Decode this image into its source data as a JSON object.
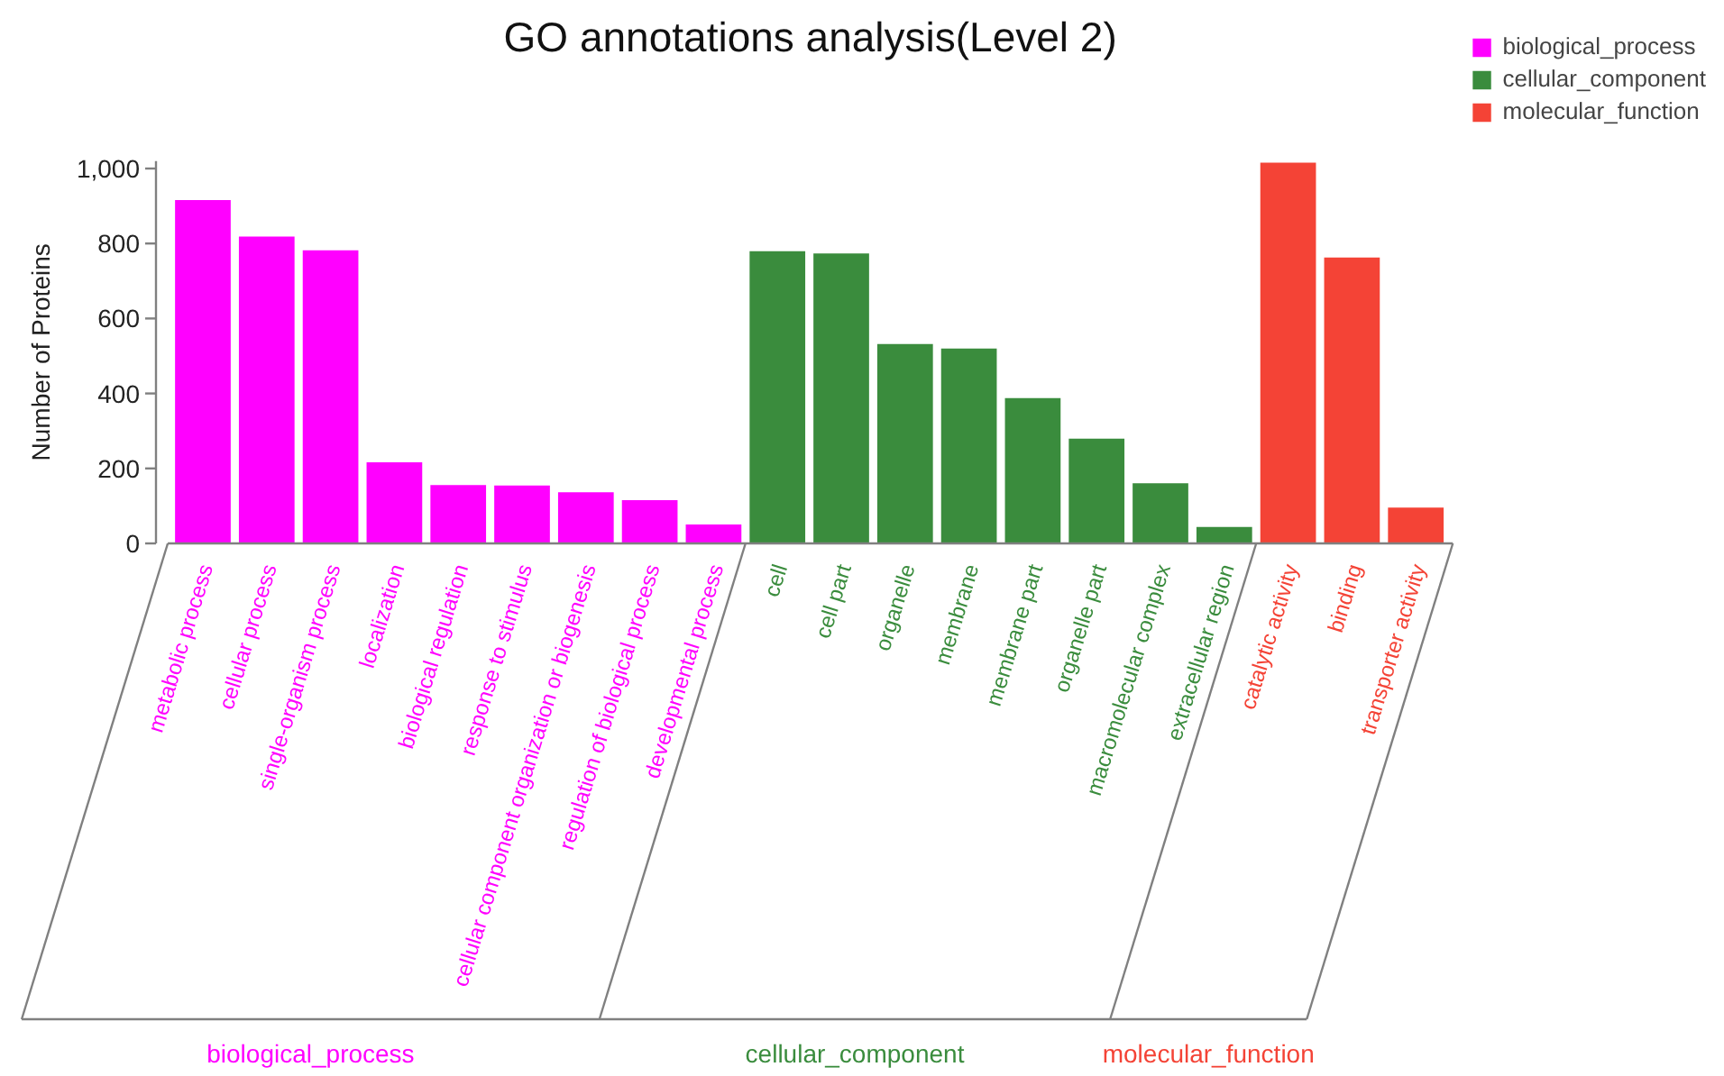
{
  "chart_data": {
    "type": "bar",
    "title": "GO annotations analysis(Level 2)",
    "ylabel": "Number of Proteins",
    "categories": [
      "metabolic process",
      "cellular process",
      "single-organism process",
      "localization",
      "biological regulation",
      "response to stimulus",
      "cellular component organization or biogenesis",
      "regulation of biological process",
      "developmental process",
      "cell",
      "cell part",
      "organelle",
      "membrane",
      "membrane part",
      "organelle part",
      "macromolecular complex",
      "extracellular region",
      "catalytic activity",
      "binding",
      "transporter activity"
    ],
    "series": [
      {
        "name": "biological_process",
        "color": "#ff00ff",
        "values": [
          918,
          821,
          784,
          219,
          158,
          157,
          139,
          118,
          53,
          null,
          null,
          null,
          null,
          null,
          null,
          null,
          null,
          null,
          null,
          null
        ]
      },
      {
        "name": "cellular_component",
        "color": "#3a8c3d",
        "values": [
          null,
          null,
          null,
          null,
          null,
          null,
          null,
          null,
          null,
          782,
          776,
          534,
          522,
          390,
          282,
          163,
          46,
          null,
          null,
          null
        ]
      },
      {
        "name": "molecular_function",
        "color": "#f44336",
        "values": [
          null,
          null,
          null,
          null,
          null,
          null,
          null,
          null,
          null,
          null,
          null,
          null,
          null,
          null,
          null,
          null,
          null,
          1018,
          765,
          98
        ]
      }
    ],
    "ylim": [
      0,
      1020
    ],
    "yticks": [
      0,
      200,
      400,
      600,
      800,
      {
        "value": 1000,
        "label": "1,000"
      }
    ],
    "grid": false,
    "legend": "top right"
  }
}
